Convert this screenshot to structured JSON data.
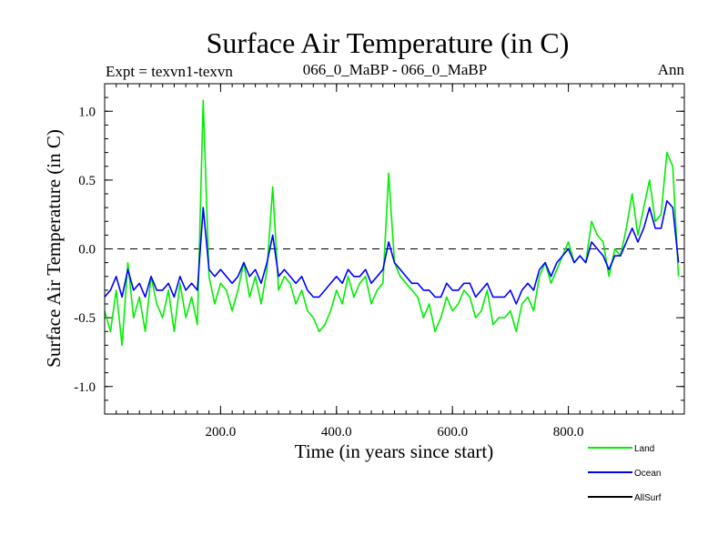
{
  "chart_data": {
    "type": "line",
    "title": "Surface Air Temperature (in C)",
    "subtitle_left": "Expt = texvn1-texvn",
    "subtitle_center": "066_0_MaBP - 066_0_MaBP",
    "subtitle_right": "Ann",
    "xlabel": "Time (in years since start)",
    "ylabel": "Surface Air Temperature (in C)",
    "xlim": [
      0,
      1000
    ],
    "ylim": [
      -1.2,
      1.2
    ],
    "x_ticks": [
      200,
      400,
      600,
      800
    ],
    "x_tick_labels": [
      "200.0",
      "400.0",
      "600.0",
      "800.0"
    ],
    "y_ticks": [
      -1.0,
      -0.5,
      0.0,
      0.5,
      1.0
    ],
    "y_tick_labels": [
      "-1.0",
      "-0.5",
      "0.0",
      "0.5",
      "1.0"
    ],
    "reference_line": {
      "y": 0.0,
      "style": "dashed"
    },
    "legend_position": "bottom-right",
    "series": [
      {
        "name": "Land",
        "color": "#00ee00",
        "x_start": 0,
        "x_step": 10,
        "values": [
          -0.45,
          -0.6,
          -0.3,
          -0.7,
          -0.1,
          -0.5,
          -0.35,
          -0.6,
          -0.2,
          -0.4,
          -0.5,
          -0.3,
          -0.6,
          -0.25,
          -0.5,
          -0.35,
          -0.55,
          1.08,
          -0.2,
          -0.4,
          -0.25,
          -0.3,
          -0.45,
          -0.3,
          -0.1,
          -0.35,
          -0.2,
          -0.4,
          -0.15,
          0.45,
          -0.3,
          -0.2,
          -0.25,
          -0.4,
          -0.3,
          -0.45,
          -0.5,
          -0.6,
          -0.55,
          -0.45,
          -0.3,
          -0.4,
          -0.2,
          -0.35,
          -0.25,
          -0.2,
          -0.4,
          -0.3,
          -0.25,
          0.55,
          -0.1,
          -0.2,
          -0.25,
          -0.3,
          -0.35,
          -0.5,
          -0.4,
          -0.6,
          -0.5,
          -0.35,
          -0.45,
          -0.4,
          -0.3,
          -0.35,
          -0.5,
          -0.45,
          -0.3,
          -0.55,
          -0.5,
          -0.5,
          -0.45,
          -0.6,
          -0.4,
          -0.35,
          -0.45,
          -0.2,
          -0.1,
          -0.25,
          -0.15,
          -0.05,
          0.05,
          -0.1,
          -0.05,
          -0.1,
          0.2,
          0.1,
          0.05,
          -0.2,
          0.0,
          -0.05,
          0.15,
          0.4,
          0.1,
          0.3,
          0.5,
          0.2,
          0.25,
          0.7,
          0.6,
          -0.2
        ]
      },
      {
        "name": "Ocean",
        "color": "#0000ff",
        "x_start": 0,
        "x_step": 10,
        "values": [
          -0.35,
          -0.3,
          -0.2,
          -0.35,
          -0.15,
          -0.3,
          -0.25,
          -0.35,
          -0.2,
          -0.3,
          -0.3,
          -0.25,
          -0.35,
          -0.2,
          -0.3,
          -0.25,
          -0.3,
          0.3,
          -0.15,
          -0.2,
          -0.15,
          -0.2,
          -0.25,
          -0.2,
          -0.1,
          -0.2,
          -0.15,
          -0.25,
          -0.1,
          0.1,
          -0.2,
          -0.15,
          -0.2,
          -0.25,
          -0.2,
          -0.3,
          -0.35,
          -0.35,
          -0.3,
          -0.25,
          -0.2,
          -0.25,
          -0.15,
          -0.2,
          -0.2,
          -0.15,
          -0.25,
          -0.2,
          -0.15,
          0.05,
          -0.1,
          -0.15,
          -0.2,
          -0.25,
          -0.25,
          -0.3,
          -0.3,
          -0.35,
          -0.35,
          -0.25,
          -0.3,
          -0.3,
          -0.25,
          -0.25,
          -0.35,
          -0.3,
          -0.25,
          -0.35,
          -0.35,
          -0.35,
          -0.3,
          -0.4,
          -0.3,
          -0.25,
          -0.3,
          -0.15,
          -0.1,
          -0.2,
          -0.1,
          -0.05,
          0.0,
          -0.1,
          -0.05,
          -0.1,
          0.05,
          0.0,
          -0.05,
          -0.15,
          -0.05,
          -0.05,
          0.05,
          0.15,
          0.05,
          0.15,
          0.3,
          0.15,
          0.15,
          0.35,
          0.3,
          -0.1
        ]
      },
      {
        "name": "AllSurf",
        "color": "#000000",
        "values": []
      }
    ]
  }
}
